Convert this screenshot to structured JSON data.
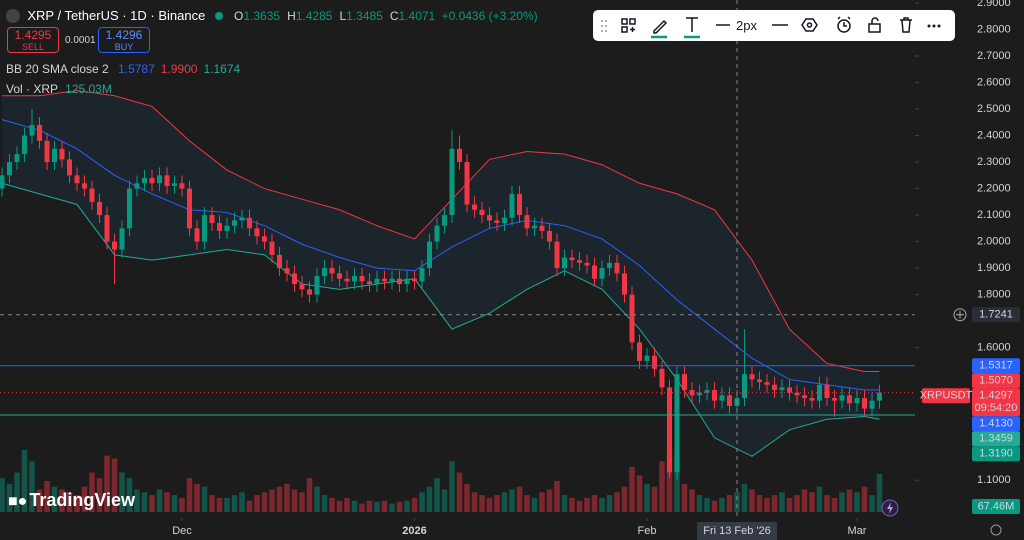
{
  "chart_data": {
    "type": "candlestick",
    "header": {
      "symbol": "XRP / TetherUS · 1D · Binance",
      "ohlc_keys": [
        "O",
        "H",
        "L",
        "C"
      ],
      "ohlc_values": [
        "1.3635",
        "1.4285",
        "1.3485",
        "1.4071"
      ],
      "change": "+0.0436 (+3.20%)"
    },
    "trade": {
      "sell_price": "1.4295",
      "sell": "SELL",
      "spread": "0.0001",
      "buy_price": "1.4296",
      "buy": "BUY"
    },
    "bb_legend": {
      "text": "BB 20 SMA close 2",
      "values": [
        "1.5787",
        "1.9900",
        "1.1674"
      ],
      "colors": [
        "#2962ff",
        "#f23645",
        "#22ab94"
      ]
    },
    "vol_legend": {
      "text": "Vol · XRP",
      "value": "125.03M"
    },
    "toolbar": {
      "width": "2px"
    },
    "brand": "TradingView",
    "up_color": "#089981",
    "down_color": "#f23645",
    "ylim": [
      0.98,
      2.9
    ],
    "yticks": [
      {
        "value": 2.9,
        "label": "2.9000"
      },
      {
        "value": 2.8,
        "label": "2.8000"
      },
      {
        "value": 2.7,
        "label": "2.7000"
      },
      {
        "value": 2.6,
        "label": "2.6000"
      },
      {
        "value": 2.5,
        "label": "2.5000"
      },
      {
        "value": 2.4,
        "label": "2.4000"
      },
      {
        "value": 2.3,
        "label": "2.3000"
      },
      {
        "value": 2.2,
        "label": "2.2000"
      },
      {
        "value": 2.1,
        "label": "2.1000"
      },
      {
        "value": 2.0,
        "label": "2.0000"
      },
      {
        "value": 1.9,
        "label": "1.9000"
      },
      {
        "value": 1.8,
        "label": "1.8000"
      },
      {
        "value": 1.6,
        "label": "1.6000"
      },
      {
        "value": 1.1,
        "label": "1.1000"
      }
    ],
    "xticks": [
      {
        "value": 24,
        "label": "Dec"
      },
      {
        "value": 55,
        "label": "2026"
      },
      {
        "value": 86,
        "label": "Feb"
      },
      {
        "value": 114,
        "label": "Mar"
      }
    ],
    "grid": false,
    "open": [
      2.2,
      2.25,
      2.3,
      2.33,
      2.4,
      2.44,
      2.38,
      2.3,
      2.35,
      2.31,
      2.25,
      2.22,
      2.2,
      2.15,
      2.1,
      2.0,
      1.97,
      2.05,
      2.2,
      2.22,
      2.24,
      2.22,
      2.25,
      2.21,
      2.22,
      2.2,
      2.05,
      2.0,
      2.1,
      2.07,
      2.04,
      2.06,
      2.08,
      2.09,
      2.05,
      2.02,
      2.0,
      1.95,
      1.9,
      1.88,
      1.84,
      1.82,
      1.8,
      1.87,
      1.9,
      1.88,
      1.86,
      1.85,
      1.87,
      1.85,
      1.84,
      1.86,
      1.85,
      1.86,
      1.84,
      1.86,
      1.85,
      1.9,
      2.0,
      2.06,
      2.1,
      2.35,
      2.3,
      2.14,
      2.12,
      2.1,
      2.08,
      2.07,
      2.09,
      2.18,
      2.1,
      2.05,
      2.06,
      2.04,
      2.0,
      1.9,
      1.94,
      1.93,
      1.92,
      1.91,
      1.86,
      1.9,
      1.92,
      1.88,
      1.8,
      1.62,
      1.55,
      1.57,
      1.52,
      1.45,
      1.13,
      1.5,
      1.44,
      1.42,
      1.43,
      1.44,
      1.4,
      1.42,
      1.38,
      1.41,
      1.5,
      1.48,
      1.47,
      1.46,
      1.44,
      1.45,
      1.43,
      1.42,
      1.41,
      1.4,
      1.46,
      1.41,
      1.4,
      1.42,
      1.39,
      1.41,
      1.37,
      1.4
    ],
    "high": [
      2.28,
      2.33,
      2.36,
      2.43,
      2.5,
      2.47,
      2.41,
      2.38,
      2.38,
      2.34,
      2.28,
      2.25,
      2.23,
      2.18,
      2.13,
      2.03,
      2.08,
      2.23,
      2.25,
      2.27,
      2.27,
      2.28,
      2.28,
      2.25,
      2.25,
      2.23,
      2.08,
      2.13,
      2.13,
      2.1,
      2.09,
      2.11,
      2.12,
      2.12,
      2.08,
      2.05,
      2.03,
      1.98,
      1.93,
      1.91,
      1.87,
      1.85,
      1.9,
      1.93,
      1.93,
      1.91,
      1.89,
      1.9,
      1.9,
      1.88,
      1.89,
      1.89,
      1.89,
      1.89,
      1.89,
      1.89,
      1.93,
      2.03,
      2.09,
      2.13,
      2.42,
      2.4,
      2.33,
      2.17,
      2.15,
      2.13,
      2.11,
      2.12,
      2.21,
      2.21,
      2.13,
      2.09,
      2.09,
      2.07,
      2.03,
      1.97,
      1.97,
      1.96,
      1.95,
      1.94,
      1.93,
      1.95,
      1.95,
      1.91,
      1.83,
      1.65,
      1.6,
      1.6,
      1.55,
      1.48,
      1.53,
      1.53,
      1.47,
      1.46,
      1.47,
      1.47,
      1.45,
      1.45,
      1.44,
      1.67,
      1.53,
      1.51,
      1.5,
      1.49,
      1.48,
      1.48,
      1.46,
      1.45,
      1.44,
      1.49,
      1.49,
      1.44,
      1.45,
      1.45,
      1.44,
      1.44,
      1.43,
      1.46
    ],
    "low": [
      2.17,
      2.22,
      2.27,
      2.3,
      2.37,
      2.35,
      2.27,
      2.27,
      2.28,
      2.22,
      2.19,
      2.17,
      2.12,
      2.07,
      1.97,
      1.84,
      1.94,
      2.02,
      2.17,
      2.19,
      2.19,
      2.19,
      2.18,
      2.18,
      2.17,
      2.02,
      1.97,
      1.97,
      2.04,
      2.01,
      2.01,
      2.03,
      2.05,
      2.02,
      1.99,
      1.97,
      1.92,
      1.87,
      1.85,
      1.81,
      1.79,
      1.77,
      1.77,
      1.84,
      1.85,
      1.83,
      1.82,
      1.82,
      1.82,
      1.81,
      1.81,
      1.82,
      1.82,
      1.81,
      1.81,
      1.82,
      1.82,
      1.87,
      1.97,
      2.03,
      2.07,
      2.27,
      2.11,
      2.09,
      2.07,
      2.05,
      2.04,
      2.04,
      2.06,
      2.07,
      2.02,
      2.02,
      2.01,
      1.97,
      1.87,
      1.87,
      1.9,
      1.89,
      1.88,
      1.83,
      1.83,
      1.87,
      1.85,
      1.77,
      1.59,
      1.52,
      1.52,
      1.49,
      1.42,
      1.11,
      1.1,
      1.41,
      1.39,
      1.39,
      1.4,
      1.37,
      1.37,
      1.35,
      1.35,
      1.38,
      1.45,
      1.44,
      1.43,
      1.41,
      1.41,
      1.4,
      1.39,
      1.38,
      1.37,
      1.37,
      1.38,
      1.34,
      1.37,
      1.36,
      1.36,
      1.34,
      1.34,
      1.37
    ],
    "close": [
      2.25,
      2.3,
      2.33,
      2.4,
      2.44,
      2.38,
      2.3,
      2.35,
      2.31,
      2.25,
      2.22,
      2.2,
      2.15,
      2.1,
      2.0,
      1.97,
      2.05,
      2.2,
      2.22,
      2.24,
      2.22,
      2.25,
      2.21,
      2.22,
      2.2,
      2.05,
      2.0,
      2.1,
      2.07,
      2.04,
      2.06,
      2.08,
      2.09,
      2.05,
      2.02,
      2.0,
      1.95,
      1.9,
      1.88,
      1.84,
      1.82,
      1.8,
      1.87,
      1.9,
      1.88,
      1.86,
      1.85,
      1.87,
      1.85,
      1.84,
      1.86,
      1.85,
      1.86,
      1.84,
      1.86,
      1.85,
      1.9,
      2.0,
      2.06,
      2.1,
      2.35,
      2.3,
      2.14,
      2.12,
      2.1,
      2.08,
      2.07,
      2.09,
      2.18,
      2.1,
      2.05,
      2.06,
      2.04,
      2.0,
      1.9,
      1.94,
      1.93,
      1.92,
      1.91,
      1.86,
      1.9,
      1.92,
      1.88,
      1.8,
      1.62,
      1.55,
      1.57,
      1.52,
      1.45,
      1.13,
      1.5,
      1.44,
      1.42,
      1.43,
      1.44,
      1.4,
      1.42,
      1.38,
      1.41,
      1.5,
      1.48,
      1.47,
      1.46,
      1.44,
      1.45,
      1.43,
      1.42,
      1.41,
      1.4,
      1.46,
      1.41,
      1.4,
      1.42,
      1.39,
      1.41,
      1.37,
      1.4,
      1.43
    ],
    "volume": {
      "values": [
        60,
        50,
        70,
        110,
        90,
        40,
        55,
        45,
        40,
        35,
        30,
        45,
        70,
        60,
        100,
        95,
        70,
        60,
        40,
        35,
        30,
        40,
        35,
        30,
        25,
        60,
        50,
        45,
        30,
        25,
        25,
        30,
        35,
        20,
        30,
        35,
        40,
        45,
        50,
        40,
        35,
        60,
        45,
        30,
        25,
        20,
        25,
        20,
        15,
        20,
        18,
        20,
        15,
        18,
        20,
        25,
        35,
        45,
        60,
        40,
        90,
        70,
        50,
        35,
        30,
        25,
        30,
        35,
        40,
        45,
        30,
        25,
        35,
        40,
        55,
        30,
        25,
        20,
        25,
        30,
        25,
        30,
        35,
        45,
        80,
        65,
        50,
        45,
        90,
        110,
        100,
        50,
        40,
        30,
        25,
        20,
        25,
        30,
        35,
        50,
        40,
        30,
        25,
        30,
        35,
        25,
        30,
        40,
        35,
        45,
        30,
        25,
        35,
        40,
        35,
        45,
        30,
        67.46
      ],
      "last_label": "67.46M"
    },
    "bollinger": {
      "x": [
        0,
        5,
        10,
        15,
        20,
        25,
        30,
        35,
        40,
        45,
        50,
        55,
        60,
        65,
        70,
        75,
        80,
        85,
        90,
        95,
        100,
        105,
        110,
        115,
        117
      ],
      "upper": [
        2.55,
        2.55,
        2.57,
        2.55,
        2.51,
        2.38,
        2.27,
        2.2,
        2.16,
        2.12,
        2.06,
        2.01,
        2.16,
        2.31,
        2.34,
        2.33,
        2.29,
        2.22,
        2.18,
        2.12,
        1.93,
        1.67,
        1.54,
        1.51,
        1.51
      ],
      "basis": [
        2.46,
        2.42,
        2.35,
        2.25,
        2.18,
        2.12,
        2.11,
        2.06,
        1.99,
        1.94,
        1.9,
        1.89,
        1.98,
        2.05,
        2.08,
        2.06,
        2.01,
        1.91,
        1.78,
        1.67,
        1.56,
        1.48,
        1.46,
        1.44,
        1.44
      ],
      "lower": [
        2.22,
        2.18,
        2.14,
        1.95,
        1.93,
        1.95,
        1.97,
        1.95,
        1.84,
        1.82,
        1.84,
        1.86,
        1.67,
        1.73,
        1.82,
        1.89,
        1.82,
        1.67,
        1.48,
        1.26,
        1.19,
        1.29,
        1.33,
        1.34,
        1.33
      ],
      "upper_color": "#f23645",
      "basis_color": "#2962ff",
      "lower_color": "#22ab94"
    },
    "price_labels": [
      {
        "value": 1.7241,
        "label": "1.7241",
        "color": "#2a2e39",
        "line": "dashed"
      },
      {
        "value": 1.5317,
        "label": "1.5317",
        "color": "#2962ff",
        "line": "solid"
      },
      {
        "value": 1.507,
        "label": "1.5070",
        "color": "#f23645"
      },
      {
        "value": 1.4297,
        "label": "1.4297",
        "color": "#f23645",
        "line": "dotted",
        "symbol": "XRPUSDT",
        "countdown": "09:54:20"
      },
      {
        "value": 1.413,
        "label": "1.4130",
        "color": "#2962ff"
      },
      {
        "value": 1.3459,
        "label": "1.3459",
        "color": "#22ab94",
        "line": "solid"
      },
      {
        "value": 1.319,
        "label": "1.3190",
        "color": "#089981"
      }
    ],
    "crosshair": {
      "index": 98,
      "label": "Fri 13 Feb '26"
    }
  }
}
